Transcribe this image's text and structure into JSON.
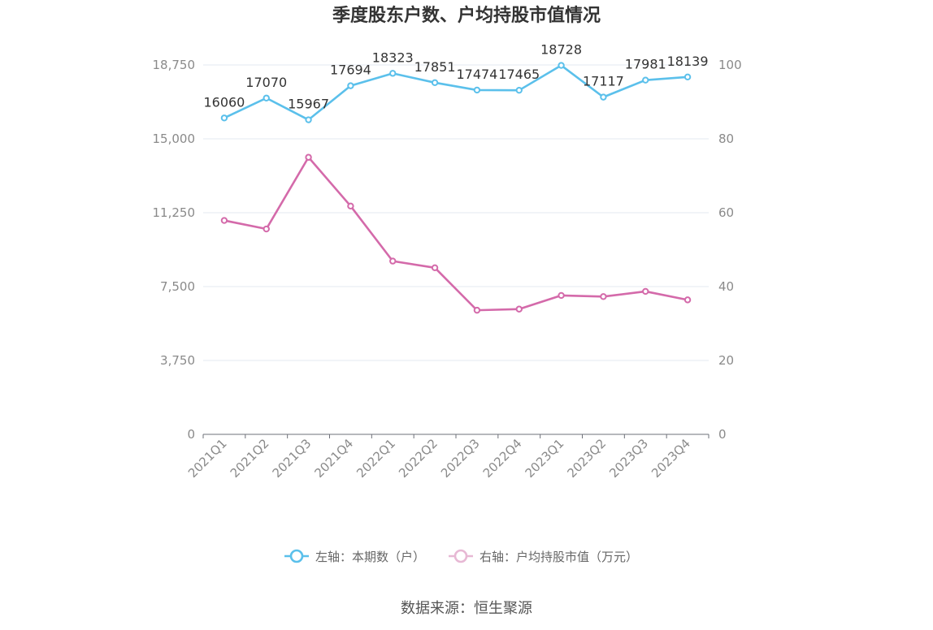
{
  "chart_data": {
    "type": "line",
    "title": "季度股东户数、户均持股市值情况",
    "categories": [
      "2021Q1",
      "2021Q2",
      "2021Q3",
      "2021Q4",
      "2022Q1",
      "2022Q2",
      "2022Q3",
      "2022Q4",
      "2023Q1",
      "2023Q2",
      "2023Q3",
      "2023Q4"
    ],
    "left_axis": {
      "min": 0,
      "max": 18750,
      "ticks": [
        "0",
        "3,750",
        "7,500",
        "11,250",
        "15,000",
        "18,750"
      ]
    },
    "right_axis": {
      "min": 0,
      "max": 100,
      "ticks": [
        "0",
        "20",
        "40",
        "60",
        "80",
        "100"
      ]
    },
    "series": [
      {
        "name": "左轴：本期数（户）",
        "axis": "left",
        "color": "#5bc0eb",
        "values": [
          16060,
          17070,
          15967,
          17694,
          18323,
          17851,
          17474,
          17465,
          18728,
          17117,
          17981,
          18139
        ],
        "labels": [
          "16060",
          "17070",
          "15967",
          "17694",
          "18323",
          "17851",
          "17474",
          "17465",
          "18728",
          "17117",
          "17981",
          "18139"
        ]
      },
      {
        "name": "右轴：户均持股市值（万元）",
        "axis": "right",
        "color": "#d46aaa",
        "values": [
          57.9,
          55.6,
          75.0,
          61.8,
          46.9,
          45.1,
          33.6,
          33.9,
          37.6,
          37.3,
          38.7,
          36.4
        ]
      }
    ],
    "grid": true,
    "legend_position": "bottom"
  },
  "source_text": "数据来源：恒生聚源"
}
